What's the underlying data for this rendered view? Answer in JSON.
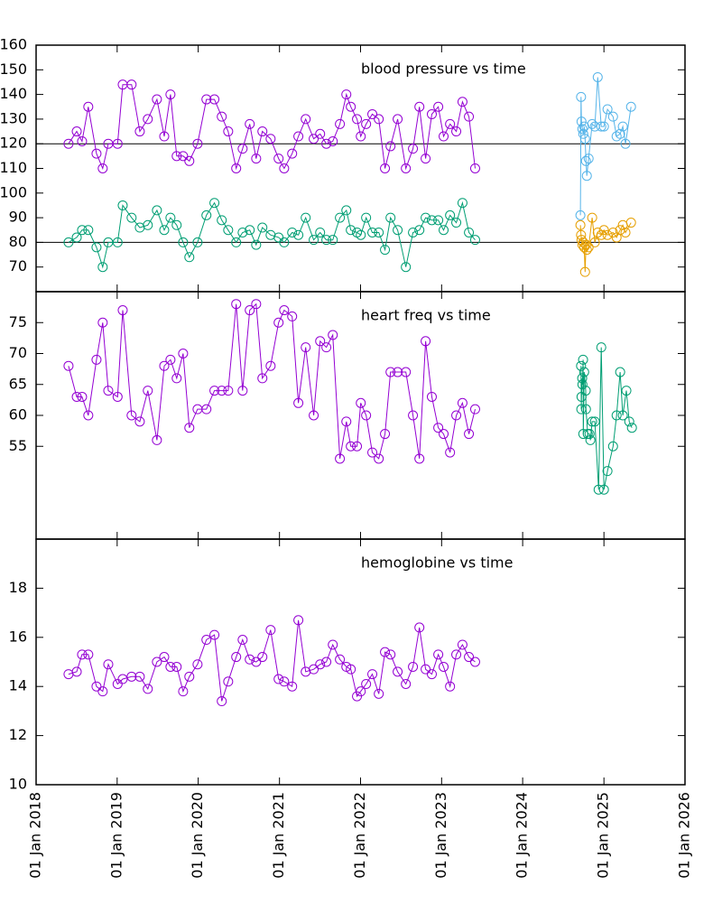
{
  "chart_data": [
    {
      "type": "line",
      "title": "blood pressure vs time",
      "xlim": [
        "2018-01-01",
        "2026-01-01"
      ],
      "ylim": [
        60,
        160
      ],
      "yticks": [
        70,
        80,
        90,
        100,
        110,
        120,
        130,
        140,
        150,
        160
      ],
      "hlines": [
        120,
        80
      ],
      "series": [
        {
          "color": "#9400d3",
          "x": [
            "2018-05-27",
            "2018-07-03",
            "2018-07-27",
            "2018-08-24",
            "2018-09-30",
            "2018-10-28",
            "2018-11-22",
            "2019-01-03",
            "2019-01-26",
            "2019-03-07",
            "2019-04-13",
            "2019-05-19",
            "2019-06-29",
            "2019-08-01",
            "2019-08-29",
            "2019-09-26",
            "2019-10-25",
            "2019-11-22",
            "2019-12-29",
            "2020-02-07",
            "2020-03-14",
            "2020-04-16",
            "2020-05-15",
            "2020-06-20",
            "2020-07-19",
            "2020-08-20",
            "2020-09-18",
            "2020-10-16",
            "2020-11-22",
            "2020-12-28",
            "2021-01-22",
            "2021-02-27",
            "2021-03-27",
            "2021-04-29",
            "2021-06-04",
            "2021-07-03",
            "2021-07-31",
            "2021-08-29",
            "2021-09-30",
            "2021-10-29",
            "2021-11-18",
            "2021-12-16",
            "2022-01-02",
            "2022-01-26",
            "2022-02-23",
            "2022-03-24",
            "2022-04-21",
            "2022-05-16",
            "2022-06-17",
            "2022-07-24",
            "2022-08-25",
            "2022-09-23",
            "2022-10-21",
            "2022-11-18",
            "2022-12-17",
            "2023-01-10",
            "2023-02-08",
            "2023-03-08",
            "2023-04-05",
            "2023-05-04",
            "2023-06-01"
          ],
          "values": [
            120,
            125,
            121,
            135,
            116,
            110,
            120,
            120,
            144,
            144,
            125,
            130,
            138,
            123,
            140,
            115,
            115,
            113,
            120,
            138,
            138,
            131,
            125,
            110,
            118,
            128,
            114,
            125,
            122,
            114,
            110,
            116,
            123,
            130,
            122,
            124,
            120,
            121,
            128,
            140,
            135,
            130,
            123,
            128,
            132,
            130,
            110,
            119,
            130,
            110,
            118,
            135,
            114,
            132,
            135,
            123,
            128,
            125,
            137,
            131,
            110
          ]
        },
        {
          "color": "#009e73",
          "x": [
            "2018-05-27",
            "2018-07-03",
            "2018-07-27",
            "2018-08-24",
            "2018-09-30",
            "2018-10-28",
            "2018-11-22",
            "2019-01-03",
            "2019-01-26",
            "2019-03-07",
            "2019-04-13",
            "2019-05-19",
            "2019-06-29",
            "2019-08-01",
            "2019-08-29",
            "2019-09-26",
            "2019-10-25",
            "2019-11-22",
            "2019-12-29",
            "2020-02-07",
            "2020-03-14",
            "2020-04-16",
            "2020-05-15",
            "2020-06-20",
            "2020-07-19",
            "2020-08-20",
            "2020-09-18",
            "2020-10-16",
            "2020-11-22",
            "2020-12-28",
            "2021-01-22",
            "2021-02-27",
            "2021-03-27",
            "2021-04-29",
            "2021-06-04",
            "2021-07-03",
            "2021-07-31",
            "2021-08-29",
            "2021-09-30",
            "2021-10-29",
            "2021-11-18",
            "2021-12-16",
            "2022-01-02",
            "2022-01-26",
            "2022-02-23",
            "2022-03-24",
            "2022-04-21",
            "2022-05-16",
            "2022-06-17",
            "2022-07-24",
            "2022-08-25",
            "2022-09-23",
            "2022-10-21",
            "2022-11-18",
            "2022-12-17",
            "2023-01-10",
            "2023-02-08",
            "2023-03-08",
            "2023-04-05",
            "2023-05-04",
            "2023-06-01"
          ],
          "values": [
            80,
            82,
            85,
            85,
            78,
            70,
            80,
            80,
            95,
            90,
            86,
            87,
            93,
            85,
            90,
            87,
            80,
            74,
            80,
            91,
            96,
            89,
            85,
            80,
            84,
            85,
            79,
            86,
            83,
            82,
            80,
            84,
            83,
            90,
            81,
            84,
            81,
            81,
            90,
            93,
            85,
            84,
            83,
            90,
            84,
            84,
            77,
            90,
            85,
            70,
            84,
            85,
            90,
            89,
            89,
            85,
            91,
            88,
            96,
            84,
            81
          ]
        },
        {
          "color": "#56b4e9",
          "x": [
            "2024-09-17",
            "2024-09-20",
            "2024-09-22",
            "2024-09-26",
            "2024-09-30",
            "2024-10-04",
            "2024-10-08",
            "2024-10-12",
            "2024-10-16",
            "2024-10-24",
            "2024-11-09",
            "2024-11-21",
            "2024-12-04",
            "2024-12-20",
            "2025-01-01",
            "2025-01-17",
            "2025-02-11",
            "2025-02-27",
            "2025-03-15",
            "2025-03-27",
            "2025-04-08",
            "2025-05-03"
          ],
          "values": [
            91,
            139,
            129,
            126,
            124,
            127,
            122,
            113,
            107,
            114,
            128,
            127,
            147,
            127,
            127,
            134,
            131,
            123,
            124,
            127,
            120,
            135
          ]
        },
        {
          "color": "#e69f00",
          "x": [
            "2024-09-17",
            "2024-09-20",
            "2024-09-22",
            "2024-09-26",
            "2024-09-30",
            "2024-10-04",
            "2024-10-08",
            "2024-10-12",
            "2024-10-16",
            "2024-10-24",
            "2024-11-09",
            "2024-11-21",
            "2024-12-04",
            "2024-12-20",
            "2025-01-01",
            "2025-01-17",
            "2025-02-11",
            "2025-02-27",
            "2025-03-15",
            "2025-03-27",
            "2025-04-08",
            "2025-05-03"
          ],
          "values": [
            87,
            83,
            81,
            79,
            80,
            78,
            68,
            79,
            77,
            78,
            90,
            80,
            84,
            83,
            85,
            83,
            84,
            82,
            85,
            87,
            84,
            88
          ]
        }
      ]
    },
    {
      "type": "line",
      "title": "heart freq vs time",
      "xlim": [
        "2018-01-01",
        "2026-01-01"
      ],
      "ylim": [
        40,
        80
      ],
      "yticks": [
        55,
        60,
        65,
        70,
        75
      ],
      "series": [
        {
          "color": "#9400d3",
          "x": [
            "2018-05-27",
            "2018-07-03",
            "2018-07-27",
            "2018-08-24",
            "2018-09-30",
            "2018-10-28",
            "2018-11-22",
            "2019-01-03",
            "2019-01-26",
            "2019-03-07",
            "2019-04-13",
            "2019-05-19",
            "2019-06-29",
            "2019-08-01",
            "2019-08-29",
            "2019-09-26",
            "2019-10-25",
            "2019-11-22",
            "2019-12-29",
            "2020-02-07",
            "2020-03-14",
            "2020-04-16",
            "2020-05-15",
            "2020-06-20",
            "2020-07-19",
            "2020-08-20",
            "2020-09-18",
            "2020-10-16",
            "2020-11-22",
            "2020-12-28",
            "2021-01-22",
            "2021-02-27",
            "2021-03-27",
            "2021-04-29",
            "2021-06-04",
            "2021-07-03",
            "2021-07-31",
            "2021-08-29",
            "2021-09-30",
            "2021-10-29",
            "2021-11-18",
            "2021-12-16",
            "2022-01-02",
            "2022-01-26",
            "2022-02-23",
            "2022-03-24",
            "2022-04-21",
            "2022-05-16",
            "2022-06-17",
            "2022-07-24",
            "2022-08-25",
            "2022-09-23",
            "2022-10-21",
            "2022-11-18",
            "2022-12-17",
            "2023-01-10",
            "2023-02-08",
            "2023-03-08",
            "2023-04-05",
            "2023-05-04",
            "2023-06-01"
          ],
          "values": [
            68,
            63,
            63,
            60,
            69,
            75,
            64,
            63,
            77,
            60,
            59,
            64,
            56,
            68,
            69,
            66,
            70,
            58,
            61,
            61,
            64,
            64,
            64,
            78,
            64,
            77,
            78,
            66,
            68,
            75,
            77,
            76,
            62,
            71,
            60,
            72,
            71,
            73,
            53,
            59,
            55,
            55,
            62,
            60,
            54,
            53,
            57,
            67,
            67,
            67,
            60,
            53,
            72,
            63,
            58,
            57,
            54,
            60,
            62,
            57,
            61
          ]
        },
        {
          "color": "#009e73",
          "x": [
            "2024-09-20",
            "2024-09-21",
            "2024-09-22",
            "2024-09-25",
            "2024-09-26",
            "2024-09-29",
            "2024-09-30",
            "2024-10-04",
            "2024-10-11",
            "2024-10-12",
            "2024-10-20",
            "2024-10-28",
            "2024-11-01",
            "2024-11-09",
            "2024-11-21",
            "2024-12-08",
            "2024-12-20",
            "2025-01-01",
            "2025-01-17",
            "2025-02-11",
            "2025-02-27",
            "2025-03-15",
            "2025-03-27",
            "2025-04-12",
            "2025-04-25",
            "2025-05-07"
          ],
          "values": [
            68,
            61,
            63,
            66,
            65,
            69,
            57,
            67,
            64,
            61,
            57,
            57,
            56,
            59,
            59,
            48,
            71,
            48,
            51,
            55,
            60,
            67,
            60,
            64,
            59,
            58
          ]
        }
      ]
    },
    {
      "type": "line",
      "title": "hemoglobine vs time",
      "xlim": [
        "2018-01-01",
        "2026-01-01"
      ],
      "ylim": [
        10,
        20
      ],
      "yticks": [
        10,
        12,
        14,
        16,
        18
      ],
      "xticks": [
        {
          "value": "2018-01-01",
          "label": "01 Jan 2018"
        },
        {
          "value": "2019-01-01",
          "label": "01 Jan 2019"
        },
        {
          "value": "2020-01-01",
          "label": "01 Jan 2020"
        },
        {
          "value": "2021-01-01",
          "label": "01 Jan 2021"
        },
        {
          "value": "2022-01-01",
          "label": "01 Jan 2022"
        },
        {
          "value": "2023-01-01",
          "label": "01 Jan 2023"
        },
        {
          "value": "2024-01-01",
          "label": "01 Jan 2024"
        },
        {
          "value": "2025-01-01",
          "label": "01 Jan 2025"
        },
        {
          "value": "2026-01-01",
          "label": "01 Jan 2026"
        }
      ],
      "series": [
        {
          "color": "#9400d3",
          "x": [
            "2018-05-27",
            "2018-07-03",
            "2018-07-27",
            "2018-08-24",
            "2018-09-30",
            "2018-10-28",
            "2018-11-22",
            "2019-01-03",
            "2019-01-26",
            "2019-03-07",
            "2019-04-13",
            "2019-05-19",
            "2019-06-29",
            "2019-08-01",
            "2019-08-29",
            "2019-09-26",
            "2019-10-25",
            "2019-11-22",
            "2019-12-29",
            "2020-02-07",
            "2020-03-14",
            "2020-04-16",
            "2020-05-15",
            "2020-06-20",
            "2020-07-19",
            "2020-08-20",
            "2020-09-18",
            "2020-10-16",
            "2020-11-22",
            "2020-12-28",
            "2021-01-22",
            "2021-02-27",
            "2021-03-27",
            "2021-04-29",
            "2021-06-04",
            "2021-07-03",
            "2021-07-31",
            "2021-08-29",
            "2021-09-30",
            "2021-10-29",
            "2021-11-18",
            "2021-12-16",
            "2022-01-02",
            "2022-01-26",
            "2022-02-23",
            "2022-03-24",
            "2022-04-21",
            "2022-05-16",
            "2022-06-17",
            "2022-07-24",
            "2022-08-25",
            "2022-09-23",
            "2022-10-21",
            "2022-11-18",
            "2022-12-17",
            "2023-01-10",
            "2023-02-08",
            "2023-03-08",
            "2023-04-05",
            "2023-05-04",
            "2023-06-01"
          ],
          "values": [
            14.5,
            14.6,
            15.3,
            15.3,
            14,
            13.8,
            14.9,
            14.1,
            14.3,
            14.4,
            14.4,
            13.9,
            15,
            15.2,
            14.8,
            14.8,
            13.8,
            14.4,
            14.9,
            15.9,
            16.1,
            13.4,
            14.2,
            15.2,
            15.9,
            15.1,
            15,
            15.2,
            16.3,
            14.3,
            14.2,
            14,
            16.7,
            14.6,
            14.7,
            14.9,
            15,
            15.7,
            15.1,
            14.8,
            14.7,
            13.6,
            13.8,
            14.1,
            14.5,
            13.7,
            15.4,
            15.3,
            14.6,
            14.1,
            14.8,
            16.4,
            14.7,
            14.5,
            15.3,
            14.8,
            14,
            15.3,
            15.7,
            15.2,
            15
          ]
        }
      ]
    }
  ]
}
